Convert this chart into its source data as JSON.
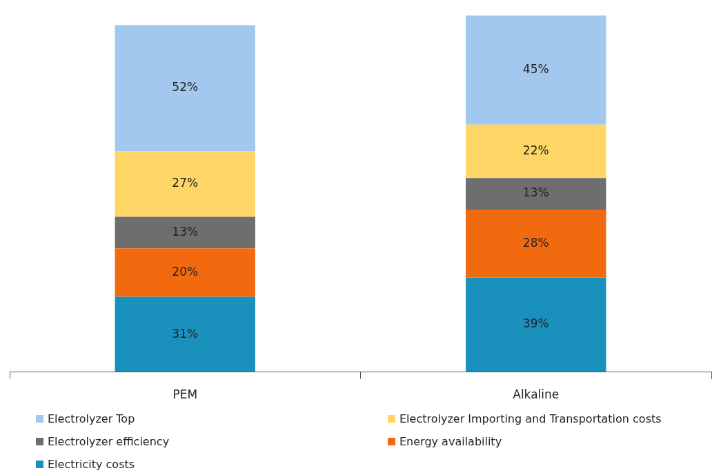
{
  "chart_data": {
    "type": "bar",
    "stacked": true,
    "categories": [
      "PEM",
      "Alkaline"
    ],
    "series": [
      {
        "name": "Electricity costs",
        "color": "#1a90bd",
        "values": [
          31,
          39
        ],
        "value_labels": [
          "31%",
          "39%"
        ]
      },
      {
        "name": "Energy availability",
        "color": "#f26a10",
        "values": [
          20,
          28
        ],
        "value_labels": [
          "20%",
          "28%"
        ]
      },
      {
        "name": "Electrolyzer efficiency",
        "color": "#6e6e6e",
        "values": [
          13,
          13
        ],
        "value_labels": [
          "13%",
          "13%"
        ]
      },
      {
        "name": "Electrolyzer Importing and Transportation costs",
        "color": "#ffd666",
        "values": [
          27,
          22
        ],
        "value_labels": [
          "27%",
          "22%"
        ]
      },
      {
        "name": "Electrolyzer Top",
        "color": "#a3c8ef",
        "values": [
          52,
          45
        ],
        "value_labels": [
          "52%",
          "45%"
        ]
      }
    ],
    "legend": "bottom",
    "grid": false
  }
}
